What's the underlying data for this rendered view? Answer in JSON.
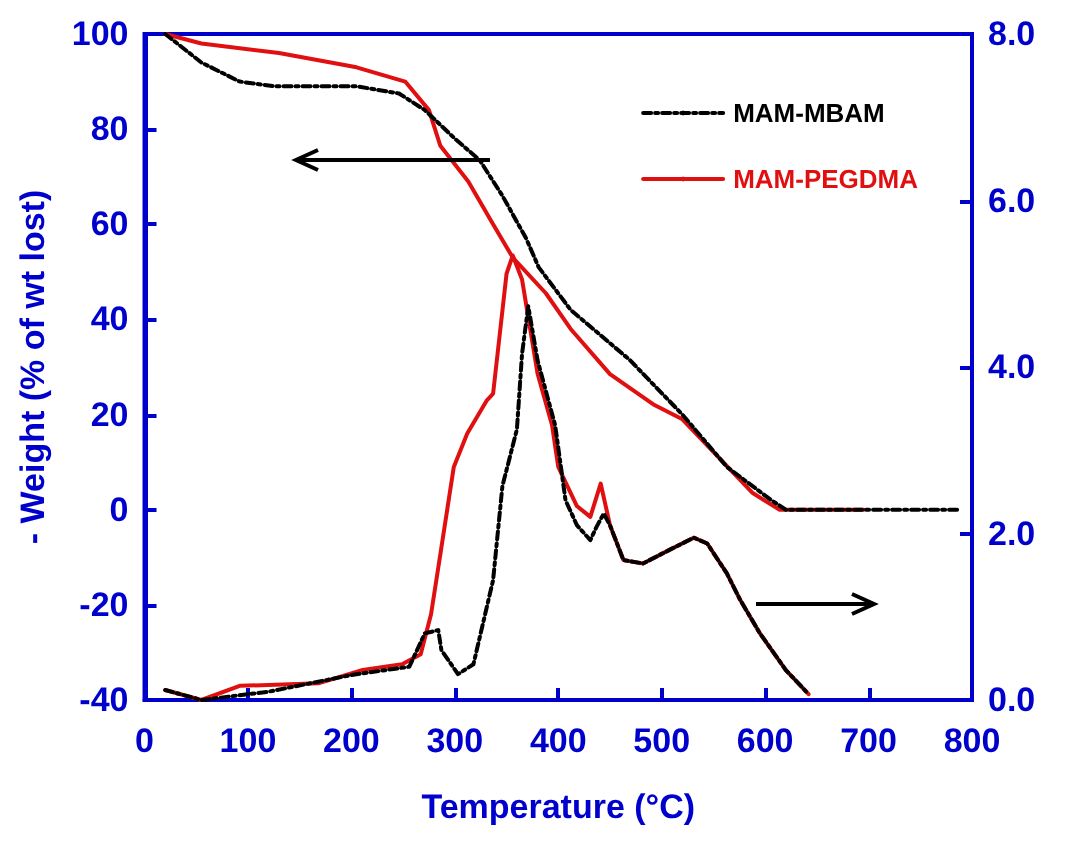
{
  "chart_data": {
    "type": "line",
    "xlabel": "Temperature (°C)",
    "ylabel": "- Weight (% of wt lost)",
    "xlim": [
      0,
      800
    ],
    "xticks": [
      0,
      100,
      200,
      300,
      400,
      500,
      600,
      700,
      800
    ],
    "ylim": [
      -40,
      100
    ],
    "yticks": [
      -40,
      -20,
      0,
      20,
      40,
      60,
      80,
      100
    ],
    "y2lim": [
      0,
      8
    ],
    "y2ticks": [
      {
        "value": 0,
        "label": "0.0"
      },
      {
        "value": 2,
        "label": "2.0"
      },
      {
        "value": 4,
        "label": "4.0"
      },
      {
        "value": 6,
        "label": "6.0"
      },
      {
        "value": 8,
        "label": "8.0"
      }
    ],
    "legend": "top right",
    "grid": false,
    "marker": "none",
    "series": [
      {
        "name": "MAM-MBAM",
        "color": "#000000",
        "line_style": "dashed",
        "x": [
          20,
          55,
          92,
          126,
          205,
          246,
          271,
          300,
          324,
          346,
          369,
          381,
          412,
          469,
          520,
          563,
          606,
          620,
          700,
          789
        ],
        "values": [
          100,
          94,
          90,
          89,
          89,
          87.5,
          84,
          78,
          73.5,
          66,
          57,
          51,
          42,
          31.5,
          20,
          9,
          2,
          0,
          0,
          0
        ]
      },
      {
        "name": "MAM-PEGDMA",
        "color": "#e01010",
        "line_style": "solid",
        "x": [
          20,
          55,
          130,
          205,
          252,
          275,
          286,
          313,
          337,
          356,
          388,
          412,
          450,
          493,
          520,
          588,
          614,
          695
        ],
        "values": [
          100,
          98,
          96,
          93,
          90,
          84,
          76.5,
          69,
          60,
          53,
          45.5,
          38,
          28.5,
          22,
          19,
          3.5,
          0,
          0
        ]
      },
      {
        "color": "#000000",
        "line_style": "dashed",
        "axis": "y2",
        "x": [
          20,
          55,
          120,
          200,
          256,
          271,
          284,
          287,
          303,
          318,
          337,
          346,
          360,
          365,
          371,
          380,
          397,
          407,
          418,
          431,
          437,
          444,
          450,
          463,
          482,
          507,
          531,
          544,
          563,
          576,
          595,
          620,
          642
        ],
        "values": [
          0.12,
          0,
          0.1,
          0.3,
          0.4,
          0.8,
          0.84,
          0.6,
          0.31,
          0.43,
          1.44,
          2.57,
          3.25,
          4.16,
          4.73,
          4.08,
          3.3,
          2.4,
          2.1,
          1.92,
          2.08,
          2.24,
          2.1,
          1.68,
          1.64,
          1.8,
          1.95,
          1.88,
          1.52,
          1.2,
          0.8,
          0.36,
          0.07
        ]
      },
      {
        "color": "#e01010",
        "line_style": "solid",
        "axis": "y2",
        "x": [
          20,
          55,
          92,
          168,
          211,
          249,
          267,
          277,
          286,
          299,
          312,
          331,
          337,
          350,
          356,
          365,
          380,
          394,
          400,
          418,
          431,
          441,
          450,
          463,
          482,
          507,
          531,
          544,
          563,
          576,
          595,
          620,
          642
        ],
        "values": [
          0.12,
          0,
          0.17,
          0.2,
          0.36,
          0.43,
          0.55,
          1.03,
          1.75,
          2.8,
          3.2,
          3.6,
          3.68,
          5.12,
          5.34,
          5.05,
          3.92,
          3.3,
          2.8,
          2.33,
          2.2,
          2.6,
          2.1,
          1.68,
          1.64,
          1.8,
          1.95,
          1.88,
          1.52,
          1.2,
          0.8,
          0.36,
          0.07
        ]
      }
    ]
  }
}
